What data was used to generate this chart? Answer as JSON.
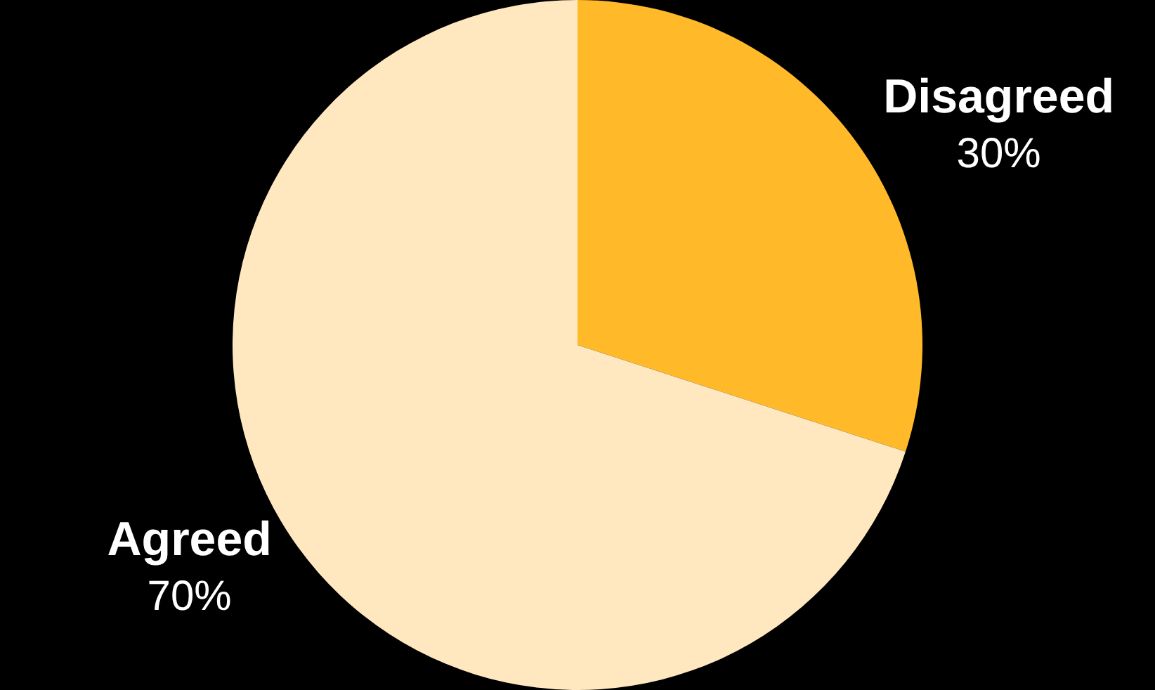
{
  "chart_data": {
    "type": "pie",
    "categories": [
      "Disagreed",
      "Agreed"
    ],
    "values": [
      30,
      70
    ],
    "colors": [
      "#ffb929",
      "#ffe8c0"
    ],
    "value_labels": [
      "30%",
      "70%"
    ],
    "legend": false
  }
}
